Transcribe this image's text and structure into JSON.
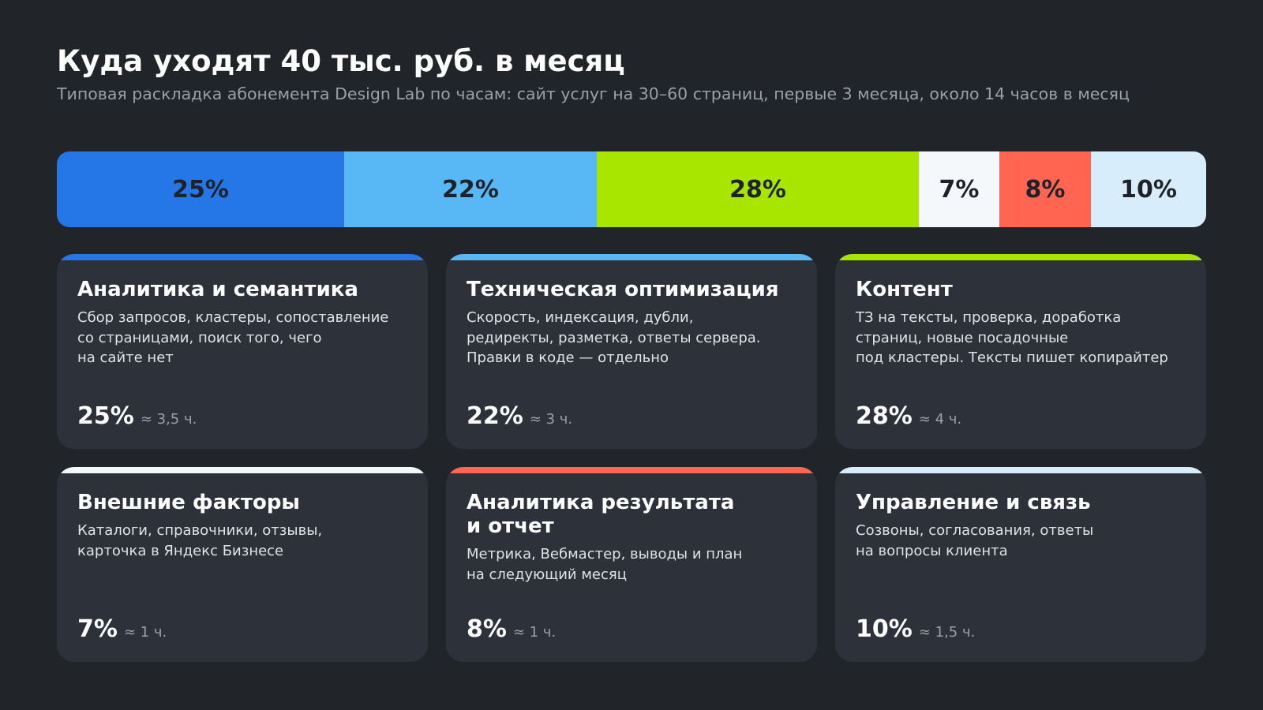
{
  "header": {
    "title": "Куда уходят 40 тыс. руб. в месяц",
    "subtitle": "Типовая раскладка абонемента Design Lab по часам: сайт услуг на 30–60 страниц, первые 3 месяца, около 14 часов в месяц"
  },
  "chart_data": {
    "type": "bar",
    "orientation": "stacked-horizontal",
    "title": "Куда уходят 40 тыс. руб. в месяц",
    "subtitle": "Типовая раскладка абонемента Design Lab по часам: сайт услуг на 30–60 страниц, первые 3 месяца, около 14 часов в месяц",
    "grid": false,
    "segments": [
      {
        "name": "Аналитика и семантика",
        "value": 25,
        "label": "25%",
        "hours": "≈ 3,5 ч.",
        "color": "#2577e8",
        "desc": "Сбор запросов, кластеры, сопоставление\nсо страницами, поиск того, чего\nна сайте нет"
      },
      {
        "name": "Техническая оптимизация",
        "value": 22,
        "label": "22%",
        "hours": "≈ 3 ч.",
        "color": "#58b7f5",
        "desc": "Скорость, индексация, дубли,\nредиректы, разметка, ответы сервера.\nПравки в коде — отдельно"
      },
      {
        "name": "Контент",
        "value": 28,
        "label": "28%",
        "hours": "≈ 4 ч.",
        "color": "#a8e600",
        "desc": "ТЗ на тексты, проверка, доработка\nстраниц, новые посадочные\nпод кластеры. Тексты пишет копирайтер"
      },
      {
        "name": "Внешние факторы",
        "value": 7,
        "label": "7%",
        "hours": "≈ 1 ч.",
        "color": "#f5f8fa",
        "desc": "Каталоги, справочники, отзывы,\nкарточка в Яндекс Бизнесе"
      },
      {
        "name": "Аналитика результата\nи отчет",
        "value": 8,
        "label": "8%",
        "hours": "≈ 1 ч.",
        "color": "#ff6550",
        "desc": "Метрика, Вебмастер, выводы и план\nна следующий месяц"
      },
      {
        "name": "Управление и связь",
        "value": 10,
        "label": "10%",
        "hours": "≈ 1,5 ч.",
        "color": "#d8edfb",
        "desc": "Созвоны, согласования, ответы\nна вопросы клиента"
      }
    ]
  }
}
